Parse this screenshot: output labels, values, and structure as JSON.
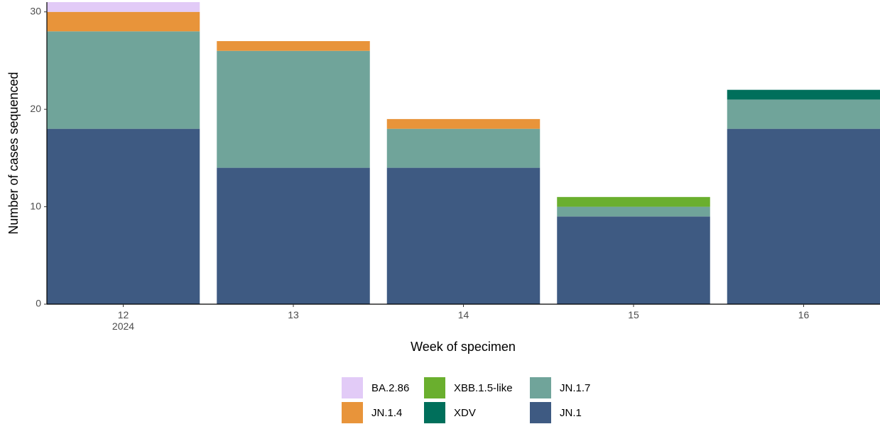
{
  "chart_data": {
    "type": "stacked_bar",
    "x_label": "Week of specimen",
    "y_label": "Number of cases sequenced",
    "categories": [
      "12\n2024",
      "13",
      "14",
      "15",
      "16"
    ],
    "series": [
      {
        "name": "BA.2.86",
        "color": "#e2cbf7",
        "values": [
          1,
          0,
          0,
          0,
          0
        ]
      },
      {
        "name": "JN.1.4",
        "color": "#e8943a",
        "values": [
          2,
          1,
          1,
          0,
          0
        ]
      },
      {
        "name": "XBB.1.5-like",
        "color": "#6aaf2e",
        "values": [
          0,
          0,
          0,
          1,
          0
        ]
      },
      {
        "name": "XDV",
        "color": "#006f5b",
        "values": [
          0,
          0,
          0,
          0,
          1
        ]
      },
      {
        "name": "JN.1.7",
        "color": "#70a49a",
        "values": [
          10,
          12,
          4,
          1,
          3
        ]
      },
      {
        "name": "JN.1",
        "color": "#3e5a82",
        "values": [
          18,
          14,
          14,
          9,
          18
        ]
      }
    ],
    "ylim": [
      0,
      31
    ],
    "yticks": [
      0,
      10,
      20,
      30
    ],
    "legend": "bottom"
  }
}
